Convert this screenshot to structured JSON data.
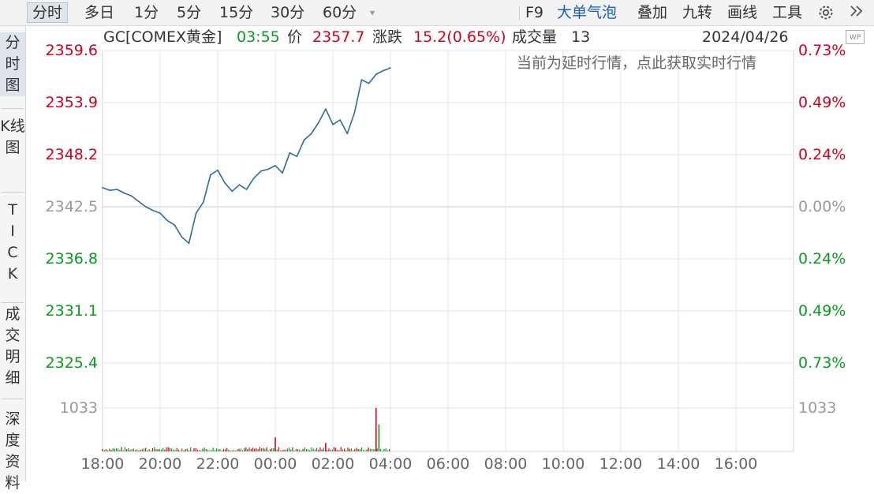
{
  "toolbar": {
    "left_items": [
      "分时",
      "多日",
      "1分",
      "5分",
      "15分",
      "30分",
      "60分"
    ],
    "dropdown_icon": "chevron-down-icon",
    "right_items": [
      "F9",
      "大单气泡",
      "叠加",
      "九转",
      "画线",
      "工具"
    ],
    "settings_icon": "gear-icon",
    "expand_icon": "double-chevron-right-icon"
  },
  "sidebar": {
    "items": [
      "分时图",
      "K线图",
      "TICK",
      "成交明细",
      "深度资料"
    ]
  },
  "info": {
    "symbol": "GC[COMEX黄金]",
    "time": "03:55",
    "price_label": "价",
    "price": "2357.7",
    "change_label": "涨跌",
    "change": "15.2(0.65%)",
    "volume_label": "成交量",
    "volume": "13",
    "date": "2024/04/26",
    "badge": "WP"
  },
  "delay_notice": "当前为延时行情，点此获取实时行情",
  "colors": {
    "up": "#d0021b",
    "down": "#0a9a1e",
    "line": "#2b6f99",
    "grid": "#e6e6e6",
    "base": "#c8c8c8"
  },
  "chart_data": {
    "type": "line",
    "x_ticks": [
      "18:00",
      "20:00",
      "22:00",
      "00:00",
      "02:00",
      "04:00",
      "06:00",
      "08:00",
      "10:00",
      "12:00",
      "14:00",
      "16:00"
    ],
    "price_axis_left": [
      "2359.6",
      "2353.9",
      "2348.2",
      "2342.5",
      "2336.8",
      "2331.1",
      "2325.4"
    ],
    "percent_axis_right": [
      "0.73%",
      "0.49%",
      "0.24%",
      "0.00%",
      "0.24%",
      "0.49%",
      "0.73%"
    ],
    "ylim": [
      2325.4,
      2359.6
    ],
    "base_price": 2342.5,
    "volume_axis_label": "1033",
    "volume_max": 1033,
    "series": [
      {
        "x": [
          0,
          0.25,
          0.5,
          0.75,
          1.0,
          1.25,
          1.5,
          1.75,
          2.0,
          2.25,
          2.5,
          2.75,
          3.0,
          3.25,
          3.5,
          3.75,
          4.0,
          4.25,
          4.5,
          4.75,
          5.0,
          5.25,
          5.5,
          5.75,
          6.0,
          6.25,
          6.5,
          6.75,
          7.0,
          7.25,
          7.5,
          7.75,
          8.0,
          8.25,
          8.5,
          8.75,
          9.0,
          9.25,
          9.5,
          9.75,
          10.0
        ],
        "values": [
          2344.6,
          2344.3,
          2344.4,
          2344.0,
          2343.7,
          2343.1,
          2342.5,
          2342.1,
          2341.8,
          2341.0,
          2340.5,
          2339.2,
          2338.5,
          2341.8,
          2343.0,
          2346.0,
          2346.5,
          2345.1,
          2344.2,
          2344.9,
          2344.4,
          2345.6,
          2346.4,
          2346.6,
          2347.0,
          2346.2,
          2348.4,
          2348.0,
          2349.8,
          2350.5,
          2351.7,
          2353.2,
          2351.5,
          2352.0,
          2350.5,
          2352.8,
          2356.4,
          2356.0,
          2357.0,
          2357.4,
          2357.7
        ]
      }
    ],
    "volume_spikes": [
      {
        "x": 6.0,
        "v": 335
      },
      {
        "x": 7.75,
        "v": 200
      },
      {
        "x": 9.5,
        "v": 1033
      },
      {
        "x": 9.6,
        "v": 640
      }
    ]
  }
}
